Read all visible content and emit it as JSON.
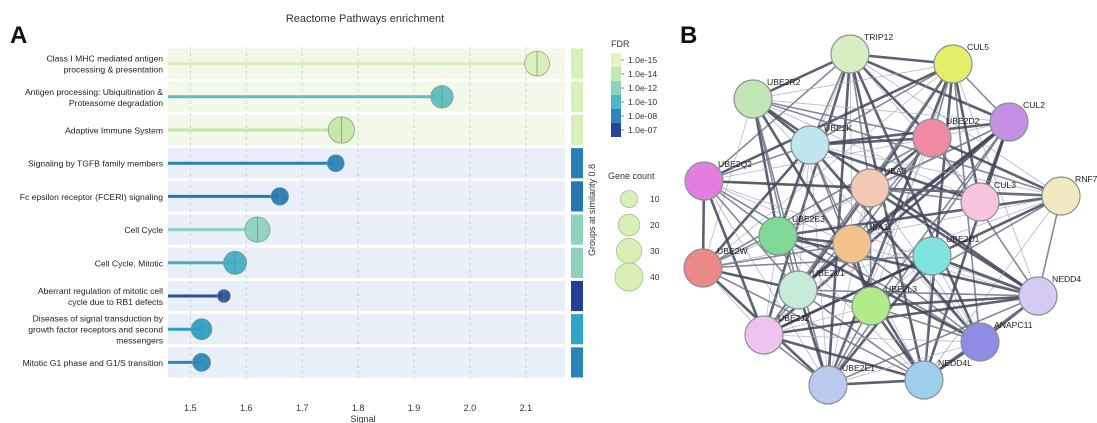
{
  "panels": {
    "a": "A",
    "b": "B"
  },
  "chart_data": [
    {
      "type": "lollipop",
      "title": "Reactome Pathways enrichment",
      "xlabel": "Signal",
      "xlim": [
        1.46,
        2.17
      ],
      "xticks": [
        1.5,
        1.6,
        1.7,
        1.8,
        1.9,
        2.0,
        2.1
      ],
      "xtick_labels": [
        "1.5",
        "1.6",
        "1.7",
        "1.8",
        "1.9",
        "2.0",
        "2.1"
      ],
      "grid": true,
      "rows": [
        {
          "label": "Class I MHC mediated antigen processing & presentation",
          "lines": [
            "Class I MHC mediated antigen",
            "processing & presentation"
          ],
          "signal": 2.12,
          "fdr": "1.0e-15",
          "color": "#d7efb8",
          "gene_count": 29,
          "group": 1
        },
        {
          "label": "Antigen processing: Ubiquitination & Proteasome degradation",
          "lines": [
            "Antigen processing: Ubiquitination &",
            "Proteasome degradation"
          ],
          "signal": 1.95,
          "fdr": "1.0e-12",
          "color": "#5ebdc0",
          "gene_count": 22,
          "group": 1
        },
        {
          "label": "Adaptive Immune System",
          "lines": [
            "Adaptive Immune System"
          ],
          "signal": 1.77,
          "fdr": "1.0e-14",
          "color": "#c5e6a8",
          "gene_count": 34,
          "group": 1
        },
        {
          "label": "Signaling by TGFB family members",
          "lines": [
            "Signaling by TGFB family members"
          ],
          "signal": 1.76,
          "fdr": "1.0e-08",
          "color": "#2a7fb8",
          "gene_count": 10,
          "group": 2
        },
        {
          "label": "Fc epsilon receptor (FCERI) signaling",
          "lines": [
            "Fc epsilon receptor (FCERI) signaling"
          ],
          "signal": 1.66,
          "fdr": "1.0e-08",
          "color": "#2877b3",
          "gene_count": 11,
          "group": 3
        },
        {
          "label": "Cell Cycle",
          "lines": [
            "Cell Cycle"
          ],
          "signal": 1.62,
          "fdr": "1.0e-12",
          "color": "#8fd1bf",
          "gene_count": 30,
          "group": 4
        },
        {
          "label": "Cell Cycle, Mitotic",
          "lines": [
            "Cell Cycle, Mitotic"
          ],
          "signal": 1.58,
          "fdr": "1.0e-11",
          "color": "#44aec3",
          "gene_count": 24,
          "group": 4
        },
        {
          "label": "Aberrant regulation of mitotic cell cycle due to RB1 defects",
          "lines": [
            "Aberrant regulation of mitotic cell",
            "cycle due to RB1 defects"
          ],
          "signal": 1.56,
          "fdr": "1.0e-07",
          "color": "#2a4d9c",
          "gene_count": 4,
          "group": 5
        },
        {
          "label": "Diseases of signal transduction by growth factor receptors and second messengers",
          "lines": [
            "Diseases of signal transduction by",
            "growth factor receptors and second",
            "messengers"
          ],
          "signal": 1.52,
          "fdr": "1.0e-10",
          "color": "#2e9ec4",
          "gene_count": 18,
          "group": 6
        },
        {
          "label": "Mitotic G1 phase and G1/S transition",
          "lines": [
            "Mitotic G1 phase and G1/S transition"
          ],
          "signal": 1.52,
          "fdr": "1.0e-09",
          "color": "#2b86b9",
          "gene_count": 12,
          "group": 7
        }
      ],
      "groups_label": "Groups at similarity 0.8",
      "group_colors": {
        "1": "#d7efb8",
        "2": "#2a7fb8",
        "3": "#2877b3",
        "4": "#8fd1bf",
        "5": "#253e95",
        "6": "#30a5c8",
        "7": "#2a84b8"
      },
      "legend_fdr": {
        "title": "FDR",
        "entries": [
          {
            "label": "1.0e-15",
            "color": "#e4f4c1"
          },
          {
            "label": "1.0e-14",
            "color": "#c6e8b6"
          },
          {
            "label": "1.0e-12",
            "color": "#8fd1bf"
          },
          {
            "label": "1.0e-10",
            "color": "#4cb5c6"
          },
          {
            "label": "1.0e-08",
            "color": "#2b86b9"
          },
          {
            "label": "1.0e-07",
            "color": "#23459a"
          }
        ]
      },
      "legend_size": {
        "title": "Gene count",
        "entries": [
          {
            "label": "10",
            "value": 10
          },
          {
            "label": "20",
            "value": 20
          },
          {
            "label": "30",
            "value": 30
          },
          {
            "label": "40",
            "value": 40
          }
        ]
      }
    },
    {
      "type": "network",
      "nodes": [
        {
          "label": "TRIP12",
          "color": "#d8eec0"
        },
        {
          "label": "CUL5",
          "color": "#e3ee6a"
        },
        {
          "label": "UBE2R2",
          "color": "#bfe6b4"
        },
        {
          "label": "CUL2",
          "color": "#c58fe6"
        },
        {
          "label": "UBE2D2",
          "color": "#f08aa0"
        },
        {
          "label": "UBE2K",
          "color": "#bfe6ef"
        },
        {
          "label": "UBE2Q2",
          "color": "#e27ee0"
        },
        {
          "label": "UBA3",
          "color": "#f3c9b6"
        },
        {
          "label": "CUL3",
          "color": "#f6c4dc"
        },
        {
          "label": "RNF7",
          "color": "#f2e8c1"
        },
        {
          "label": "UBE2E3",
          "color": "#7fd896"
        },
        {
          "label": "UBA1",
          "color": "#f3c28c"
        },
        {
          "label": "UBE2D1",
          "color": "#7fe4de"
        },
        {
          "label": "UBE2W",
          "color": "#ec8a8a"
        },
        {
          "label": "UBE2V1",
          "color": "#c6ecd7"
        },
        {
          "label": "NEDD4",
          "color": "#d6c9f2"
        },
        {
          "label": "UBE2L3",
          "color": "#b2ec88"
        },
        {
          "label": "UBE2J2",
          "color": "#eec4ee"
        },
        {
          "label": "ANAPC11",
          "color": "#8f8ce6"
        },
        {
          "label": "UBE2E1",
          "color": "#bcc9ef"
        },
        {
          "label": "NEDD4L",
          "color": "#9fcdec"
        }
      ]
    }
  ]
}
